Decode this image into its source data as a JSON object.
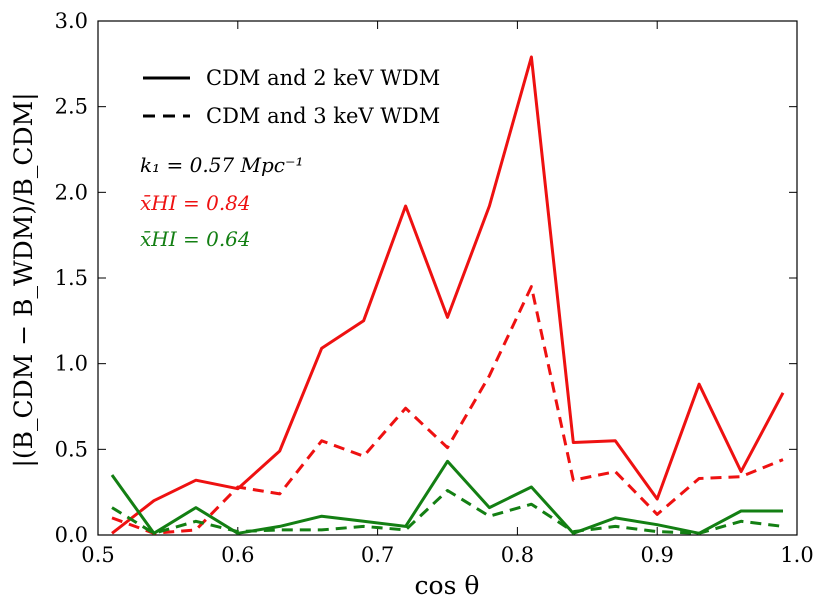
{
  "chart_data": {
    "type": "line",
    "xlabel": "cos θ",
    "ylabel": "|(B_CDM − B_WDM)/B_CDM|",
    "xlim": [
      0.5,
      1.0
    ],
    "ylim": [
      0.0,
      3.0
    ],
    "xticks": [
      "0.5",
      "0.6",
      "0.7",
      "0.8",
      "0.9",
      "1.0"
    ],
    "yticks": [
      "0.0",
      "0.5",
      "1.0",
      "1.5",
      "2.0",
      "2.5",
      "3.0"
    ],
    "x": [
      0.51,
      0.54,
      0.57,
      0.6,
      0.63,
      0.66,
      0.69,
      0.72,
      0.75,
      0.78,
      0.81,
      0.84,
      0.87,
      0.9,
      0.93,
      0.96,
      0.99
    ],
    "series": [
      {
        "name": "x̄HI=0.84, CDM and 2 keV WDM",
        "color": "#ee1111",
        "dash": "solid",
        "values": [
          0.01,
          0.2,
          0.32,
          0.27,
          0.49,
          1.09,
          1.25,
          1.92,
          1.27,
          1.92,
          2.79,
          0.54,
          0.55,
          0.21,
          0.88,
          0.37,
          0.83
        ]
      },
      {
        "name": "x̄HI=0.84, CDM and 3 keV WDM",
        "color": "#ee1111",
        "dash": "dashed",
        "values": [
          0.1,
          0.01,
          0.03,
          0.28,
          0.24,
          0.55,
          0.46,
          0.74,
          0.51,
          0.93,
          1.45,
          0.32,
          0.37,
          0.12,
          0.33,
          0.34,
          0.44
        ]
      },
      {
        "name": "x̄HI=0.64, CDM and 2 keV WDM",
        "color": "#137f13",
        "dash": "solid",
        "values": [
          0.35,
          0.01,
          0.16,
          0.01,
          0.05,
          0.11,
          0.08,
          0.05,
          0.43,
          0.16,
          0.28,
          0.01,
          0.1,
          0.06,
          0.01,
          0.14,
          0.14
        ]
      },
      {
        "name": "x̄HI=0.64, CDM and 3 keV WDM",
        "color": "#137f13",
        "dash": "dashed",
        "values": [
          0.16,
          0.01,
          0.08,
          0.02,
          0.03,
          0.03,
          0.05,
          0.03,
          0.26,
          0.11,
          0.18,
          0.02,
          0.05,
          0.02,
          0.01,
          0.08,
          0.05
        ]
      }
    ],
    "legend": {
      "position": "top-left",
      "entries": [
        {
          "label": "CDM and 2 keV WDM",
          "dash": "solid"
        },
        {
          "label": "CDM and 3 keV WDM",
          "dash": "dashed"
        }
      ]
    },
    "annotations": {
      "k1": "k₁ = 0.57 Mpc⁻¹",
      "k1_color": "#000000",
      "xhi_high": "x̄HI = 0.84",
      "xhi_high_color": "#ee1111",
      "xhi_low": "x̄HI = 0.64",
      "xhi_low_color": "#137f13"
    }
  }
}
